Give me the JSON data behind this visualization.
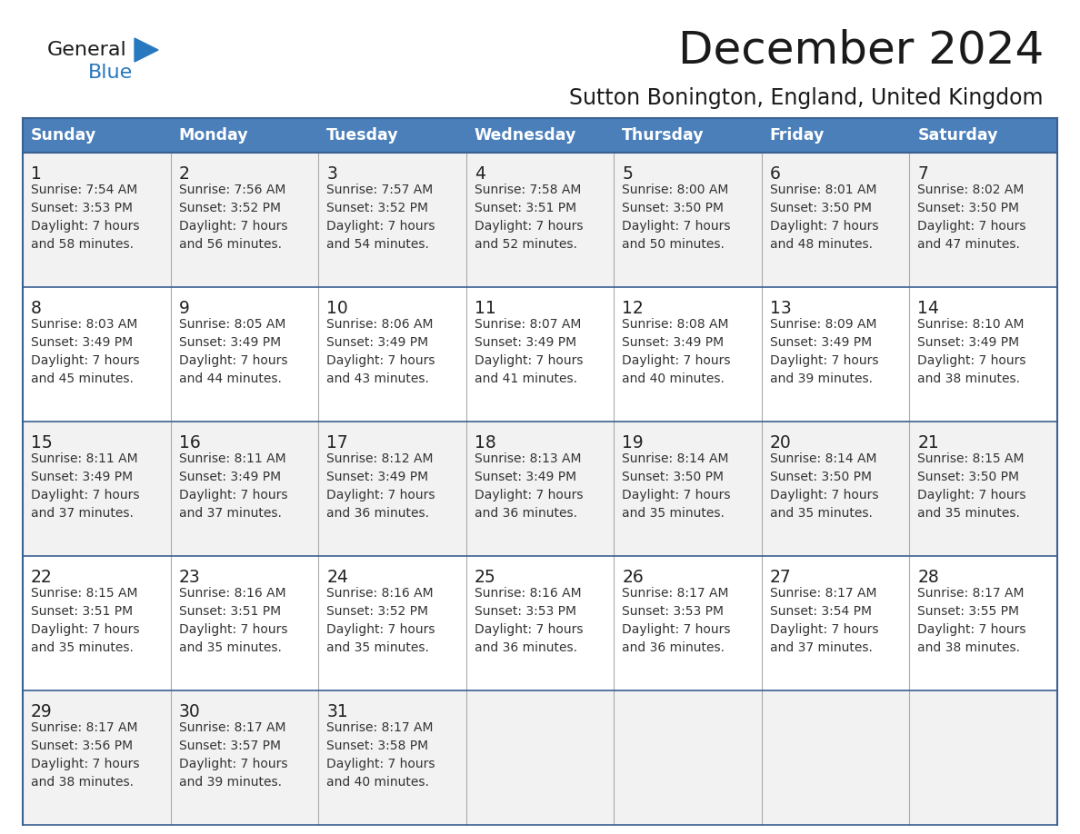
{
  "title": "December 2024",
  "subtitle": "Sutton Bonington, England, United Kingdom",
  "days_of_week": [
    "Sunday",
    "Monday",
    "Tuesday",
    "Wednesday",
    "Thursday",
    "Friday",
    "Saturday"
  ],
  "header_bg": "#4a7fba",
  "header_text": "#ffffff",
  "cell_bg_odd": "#f2f2f2",
  "cell_bg_even": "#ffffff",
  "border_color": "#3a6090",
  "vline_color": "#aaaaaa",
  "day_num_color": "#222222",
  "cell_text_color": "#333333",
  "title_color": "#1a1a1a",
  "subtitle_color": "#1a1a1a",
  "logo_general_color": "#1a1a1a",
  "logo_blue_color": "#2878c0",
  "weeks": [
    [
      {
        "day": 1,
        "sunrise": "7:54 AM",
        "sunset": "3:53 PM",
        "daylight_line2": "and 58 minutes."
      },
      {
        "day": 2,
        "sunrise": "7:56 AM",
        "sunset": "3:52 PM",
        "daylight_line2": "and 56 minutes."
      },
      {
        "day": 3,
        "sunrise": "7:57 AM",
        "sunset": "3:52 PM",
        "daylight_line2": "and 54 minutes."
      },
      {
        "day": 4,
        "sunrise": "7:58 AM",
        "sunset": "3:51 PM",
        "daylight_line2": "and 52 minutes."
      },
      {
        "day": 5,
        "sunrise": "8:00 AM",
        "sunset": "3:50 PM",
        "daylight_line2": "and 50 minutes."
      },
      {
        "day": 6,
        "sunrise": "8:01 AM",
        "sunset": "3:50 PM",
        "daylight_line2": "and 48 minutes."
      },
      {
        "day": 7,
        "sunrise": "8:02 AM",
        "sunset": "3:50 PM",
        "daylight_line2": "and 47 minutes."
      }
    ],
    [
      {
        "day": 8,
        "sunrise": "8:03 AM",
        "sunset": "3:49 PM",
        "daylight_line2": "and 45 minutes."
      },
      {
        "day": 9,
        "sunrise": "8:05 AM",
        "sunset": "3:49 PM",
        "daylight_line2": "and 44 minutes."
      },
      {
        "day": 10,
        "sunrise": "8:06 AM",
        "sunset": "3:49 PM",
        "daylight_line2": "and 43 minutes."
      },
      {
        "day": 11,
        "sunrise": "8:07 AM",
        "sunset": "3:49 PM",
        "daylight_line2": "and 41 minutes."
      },
      {
        "day": 12,
        "sunrise": "8:08 AM",
        "sunset": "3:49 PM",
        "daylight_line2": "and 40 minutes."
      },
      {
        "day": 13,
        "sunrise": "8:09 AM",
        "sunset": "3:49 PM",
        "daylight_line2": "and 39 minutes."
      },
      {
        "day": 14,
        "sunrise": "8:10 AM",
        "sunset": "3:49 PM",
        "daylight_line2": "and 38 minutes."
      }
    ],
    [
      {
        "day": 15,
        "sunrise": "8:11 AM",
        "sunset": "3:49 PM",
        "daylight_line2": "and 37 minutes."
      },
      {
        "day": 16,
        "sunrise": "8:11 AM",
        "sunset": "3:49 PM",
        "daylight_line2": "and 37 minutes."
      },
      {
        "day": 17,
        "sunrise": "8:12 AM",
        "sunset": "3:49 PM",
        "daylight_line2": "and 36 minutes."
      },
      {
        "day": 18,
        "sunrise": "8:13 AM",
        "sunset": "3:49 PM",
        "daylight_line2": "and 36 minutes."
      },
      {
        "day": 19,
        "sunrise": "8:14 AM",
        "sunset": "3:50 PM",
        "daylight_line2": "and 35 minutes."
      },
      {
        "day": 20,
        "sunrise": "8:14 AM",
        "sunset": "3:50 PM",
        "daylight_line2": "and 35 minutes."
      },
      {
        "day": 21,
        "sunrise": "8:15 AM",
        "sunset": "3:50 PM",
        "daylight_line2": "and 35 minutes."
      }
    ],
    [
      {
        "day": 22,
        "sunrise": "8:15 AM",
        "sunset": "3:51 PM",
        "daylight_line2": "and 35 minutes."
      },
      {
        "day": 23,
        "sunrise": "8:16 AM",
        "sunset": "3:51 PM",
        "daylight_line2": "and 35 minutes."
      },
      {
        "day": 24,
        "sunrise": "8:16 AM",
        "sunset": "3:52 PM",
        "daylight_line2": "and 35 minutes."
      },
      {
        "day": 25,
        "sunrise": "8:16 AM",
        "sunset": "3:53 PM",
        "daylight_line2": "and 36 minutes."
      },
      {
        "day": 26,
        "sunrise": "8:17 AM",
        "sunset": "3:53 PM",
        "daylight_line2": "and 36 minutes."
      },
      {
        "day": 27,
        "sunrise": "8:17 AM",
        "sunset": "3:54 PM",
        "daylight_line2": "and 37 minutes."
      },
      {
        "day": 28,
        "sunrise": "8:17 AM",
        "sunset": "3:55 PM",
        "daylight_line2": "and 38 minutes."
      }
    ],
    [
      {
        "day": 29,
        "sunrise": "8:17 AM",
        "sunset": "3:56 PM",
        "daylight_line2": "and 38 minutes."
      },
      {
        "day": 30,
        "sunrise": "8:17 AM",
        "sunset": "3:57 PM",
        "daylight_line2": "and 39 minutes."
      },
      {
        "day": 31,
        "sunrise": "8:17 AM",
        "sunset": "3:58 PM",
        "daylight_line2": "and 40 minutes."
      },
      null,
      null,
      null,
      null
    ]
  ]
}
